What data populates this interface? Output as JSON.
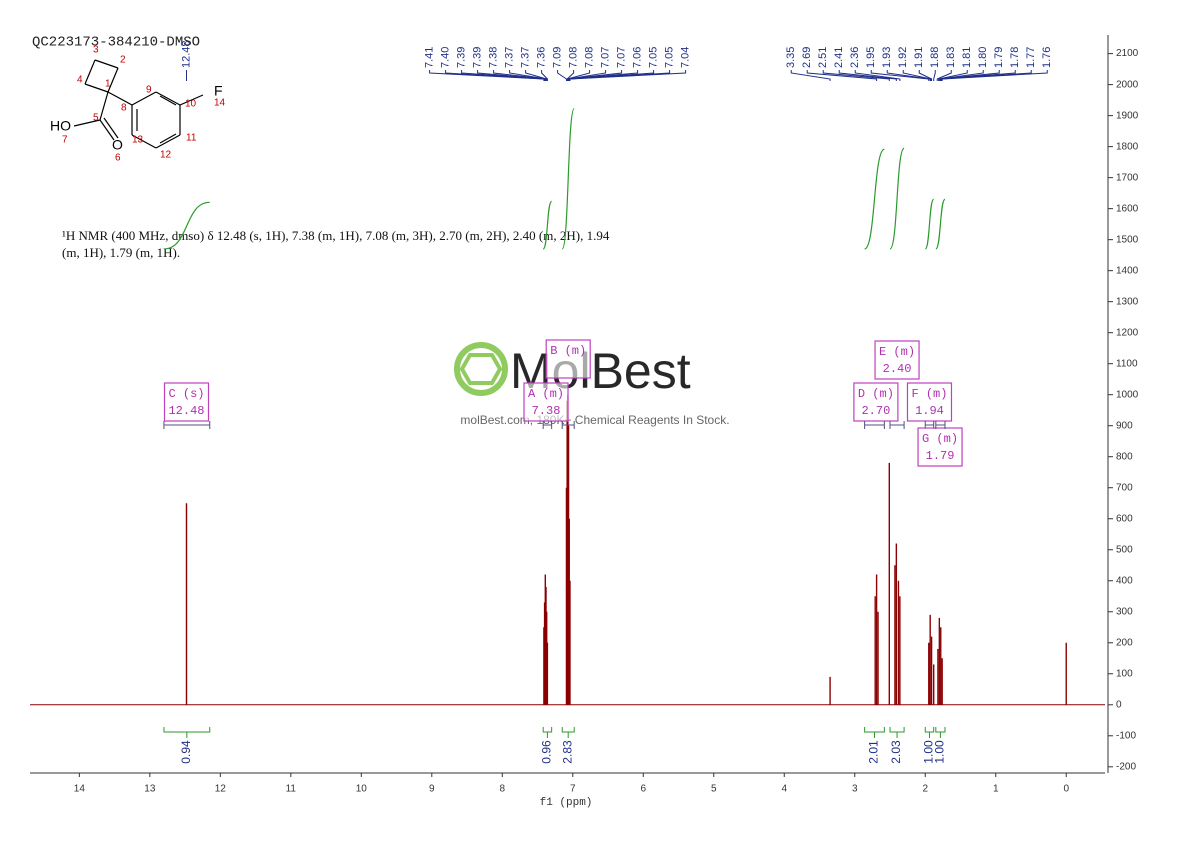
{
  "sample_name": "QC223173-384210-DMSO",
  "description": [
    "¹H NMR (400 MHz, dmso) δ 12.48 (s, 1H), 7.38 (m, 1H), 7.08 (m, 3H), 2.70 (m, 2H), 2.40 (m, 2H), 1.94",
    "(m, 1H), 1.79 (m, 1H)."
  ],
  "watermark": {
    "brand": "MolBest",
    "tagline": "molBest.com, 180K+ Chemical Reagents In Stock."
  },
  "structure": {
    "labels": [
      "3",
      "2",
      "4",
      "1",
      "9",
      "F",
      "14",
      "8",
      "10",
      "HO",
      "7",
      "5",
      "13",
      "11",
      "O",
      "6",
      "12"
    ]
  },
  "chart_data": {
    "type": "nmr",
    "x_label": "f1 (ppm)",
    "xlim": [
      14.7,
      -0.55
    ],
    "xticks": [
      14,
      13,
      12,
      11,
      10,
      9,
      8,
      7,
      6,
      5,
      4,
      3,
      2,
      1,
      0
    ],
    "ylim": [
      -220,
      2160
    ],
    "yticks": [
      -200,
      -100,
      0,
      100,
      200,
      300,
      400,
      500,
      600,
      700,
      800,
      900,
      1000,
      1100,
      1200,
      1300,
      1400,
      1500,
      1600,
      1700,
      1800,
      1900,
      2000,
      2100
    ],
    "color": "#8b0000",
    "peaks": {
      "x": [
        12.48,
        7.41,
        7.4,
        7.39,
        7.38,
        7.37,
        7.36,
        7.09,
        7.08,
        7.07,
        7.06,
        7.05,
        7.04,
        3.35,
        2.71,
        2.69,
        2.67,
        2.51,
        2.43,
        2.41,
        2.38,
        2.36,
        1.95,
        1.93,
        1.91,
        1.88,
        1.82,
        1.8,
        1.78,
        1.76,
        0
      ],
      "values": [
        650,
        250,
        330,
        420,
        380,
        300,
        200,
        700,
        980,
        1000,
        900,
        600,
        400,
        90,
        350,
        420,
        300,
        780,
        450,
        520,
        400,
        350,
        200,
        290,
        220,
        130,
        180,
        280,
        250,
        150,
        200
      ]
    },
    "peak_picks": [
      12.48,
      7.41,
      {
        "value": 7.4,
        "label": "7.40"
      },
      7.39,
      7.39,
      7.38,
      7.37,
      7.37,
      7.36,
      7.09,
      7.08,
      7.08,
      7.07,
      7.07,
      7.06,
      7.05,
      7.05,
      7.04,
      3.35,
      2.69,
      2.51,
      2.41,
      2.36,
      1.95,
      1.93,
      1.92,
      1.91,
      1.88,
      1.83,
      1.81,
      {
        "value": 1.8,
        "label": "1.80"
      },
      1.79,
      1.78,
      1.77,
      1.76
    ],
    "integrals": {
      "ranges": [
        [
          12.8,
          12.15
        ],
        [
          7.42,
          7.3
        ],
        [
          7.15,
          6.98
        ],
        [
          2.86,
          2.58
        ],
        [
          2.5,
          2.3
        ],
        [
          2.0,
          1.88
        ],
        [
          1.85,
          1.72
        ]
      ],
      "values": [
        0.94,
        0.96,
        2.83,
        2.01,
        2.03,
        1,
        1
      ],
      "value_labels": [
        "0.94",
        "0.96",
        "2.83",
        "2.01",
        "2.03",
        "1.00",
        "1.00"
      ],
      "color": "#2a9a2a"
    },
    "multiplets": [
      {
        "label": "C (s)",
        "shift": 12.48
      },
      {
        "label": "A (m)",
        "shift": 7.38
      },
      {
        "label": "B (m)"
      },
      {
        "label": "D (m)",
        "shift": {
          "value": 2.7,
          "label": "2.70"
        }
      },
      {
        "label": "E (m)",
        "shift": {
          "value": 2.4,
          "label": "2.40"
        }
      },
      {
        "label": "F (m)",
        "shift": 1.94
      },
      {
        "label": "G (m)",
        "shift": 1.79
      }
    ]
  }
}
